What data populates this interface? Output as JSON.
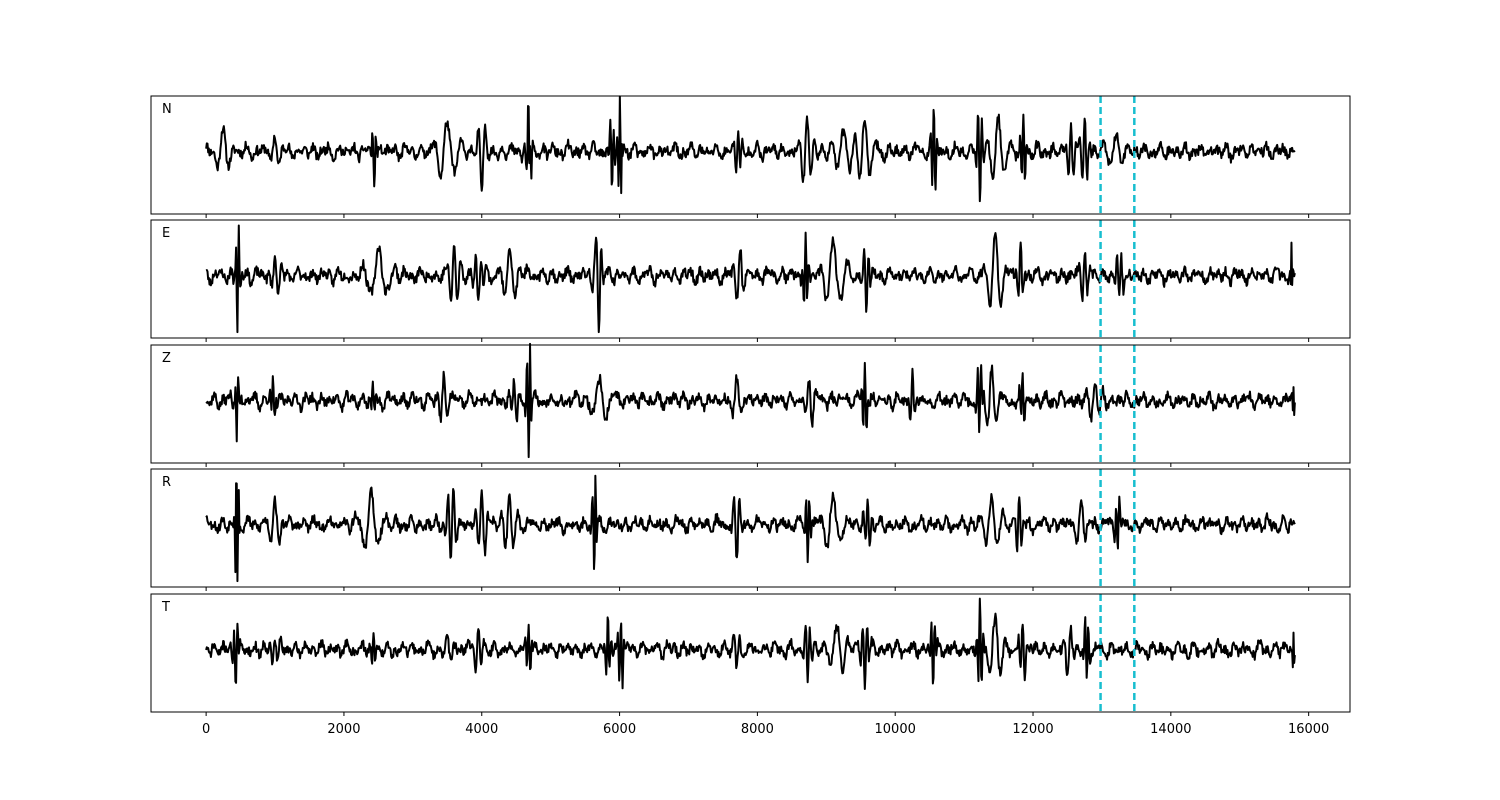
{
  "chart_data": {
    "type": "line",
    "xlabel": "",
    "ylabel": "",
    "xlim": [
      -800,
      16600
    ],
    "xticks": [
      0,
      2000,
      4000,
      6000,
      8000,
      10000,
      12000,
      14000,
      16000
    ],
    "xtick_labels": [
      "0",
      "2000",
      "4000",
      "6000",
      "8000",
      "10000",
      "12000",
      "14000",
      "16000"
    ],
    "x_range": [
      0,
      15800
    ],
    "markers": [
      {
        "x": 12980,
        "color": "#17becf",
        "style": "dashed"
      },
      {
        "x": 13470,
        "color": "#17becf",
        "style": "dashed"
      }
    ],
    "line_color": "#000000",
    "grid": false,
    "panels": [
      {
        "label": "N",
        "seed": 11,
        "bursts": [
          {
            "x": 250,
            "w": 220,
            "a": 0.35
          },
          {
            "x": 1000,
            "w": 150,
            "a": 0.3
          },
          {
            "x": 2440,
            "w": 60,
            "a": -0.55
          },
          {
            "x": 3500,
            "w": 250,
            "a": 0.45
          },
          {
            "x": 4000,
            "w": 120,
            "a": -0.55
          },
          {
            "x": 4680,
            "w": 80,
            "a": 0.6
          },
          {
            "x": 4690,
            "w": 40,
            "a": -0.55
          },
          {
            "x": 5890,
            "w": 60,
            "a": -0.7
          },
          {
            "x": 6010,
            "w": 60,
            "a": 0.6
          },
          {
            "x": 6020,
            "w": 40,
            "a": -0.85
          },
          {
            "x": 7720,
            "w": 80,
            "a": 0.45
          },
          {
            "x": 8720,
            "w": 140,
            "a": 0.55
          },
          {
            "x": 9250,
            "w": 220,
            "a": 0.5
          },
          {
            "x": 9560,
            "w": 200,
            "a": 0.5
          },
          {
            "x": 10560,
            "w": 60,
            "a": 0.85
          },
          {
            "x": 11230,
            "w": 70,
            "a": -0.9
          },
          {
            "x": 11500,
            "w": 200,
            "a": 0.55
          },
          {
            "x": 11860,
            "w": 60,
            "a": 0.65
          },
          {
            "x": 12550,
            "w": 90,
            "a": 0.5
          },
          {
            "x": 12750,
            "w": 90,
            "a": 0.6
          },
          {
            "x": 13200,
            "w": 200,
            "a": 0.3
          }
        ]
      },
      {
        "label": "E",
        "seed": 23,
        "bursts": [
          {
            "x": 450,
            "w": 60,
            "a": -0.9
          },
          {
            "x": 440,
            "w": 40,
            "a": 0.55
          },
          {
            "x": 1000,
            "w": 120,
            "a": 0.35
          },
          {
            "x": 2500,
            "w": 300,
            "a": 0.4
          },
          {
            "x": 3600,
            "w": 120,
            "a": 0.55
          },
          {
            "x": 3950,
            "w": 100,
            "a": -0.5
          },
          {
            "x": 4400,
            "w": 200,
            "a": 0.45
          },
          {
            "x": 5650,
            "w": 120,
            "a": 0.55
          },
          {
            "x": 5700,
            "w": 80,
            "a": -0.55
          },
          {
            "x": 7750,
            "w": 120,
            "a": 0.45
          },
          {
            "x": 8700,
            "w": 60,
            "a": 0.75
          },
          {
            "x": 9100,
            "w": 250,
            "a": 0.55
          },
          {
            "x": 9580,
            "w": 80,
            "a": -0.65
          },
          {
            "x": 11450,
            "w": 200,
            "a": 0.65
          },
          {
            "x": 11820,
            "w": 80,
            "a": 0.5
          },
          {
            "x": 12750,
            "w": 100,
            "a": 0.45
          },
          {
            "x": 13250,
            "w": 80,
            "a": -0.5
          },
          {
            "x": 15750,
            "w": 30,
            "a": 0.45
          }
        ]
      },
      {
        "label": "Z",
        "seed": 37,
        "bursts": [
          {
            "x": 440,
            "w": 60,
            "a": -0.5
          },
          {
            "x": 430,
            "w": 40,
            "a": 0.3
          },
          {
            "x": 970,
            "w": 60,
            "a": 0.35
          },
          {
            "x": 2420,
            "w": 60,
            "a": 0.3
          },
          {
            "x": 3450,
            "w": 120,
            "a": 0.4
          },
          {
            "x": 4470,
            "w": 100,
            "a": 0.4
          },
          {
            "x": 4680,
            "w": 60,
            "a": -0.9
          },
          {
            "x": 4700,
            "w": 40,
            "a": 0.5
          },
          {
            "x": 5700,
            "w": 250,
            "a": 0.4
          },
          {
            "x": 7700,
            "w": 150,
            "a": 0.4
          },
          {
            "x": 8750,
            "w": 120,
            "a": 0.45
          },
          {
            "x": 9560,
            "w": 60,
            "a": 0.65
          },
          {
            "x": 10250,
            "w": 80,
            "a": 0.45
          },
          {
            "x": 11220,
            "w": 60,
            "a": -0.65
          },
          {
            "x": 11400,
            "w": 160,
            "a": 0.65
          },
          {
            "x": 11850,
            "w": 60,
            "a": 0.45
          },
          {
            "x": 12900,
            "w": 150,
            "a": 0.3
          },
          {
            "x": 15780,
            "w": 30,
            "a": 0.25
          }
        ]
      },
      {
        "label": "R",
        "seed": 53,
        "bursts": [
          {
            "x": 440,
            "w": 40,
            "a": 0.85
          },
          {
            "x": 455,
            "w": 40,
            "a": -0.6
          },
          {
            "x": 1000,
            "w": 150,
            "a": 0.45
          },
          {
            "x": 2400,
            "w": 250,
            "a": 0.5
          },
          {
            "x": 3550,
            "w": 100,
            "a": -0.75
          },
          {
            "x": 4000,
            "w": 120,
            "a": 0.65
          },
          {
            "x": 4400,
            "w": 150,
            "a": 0.5
          },
          {
            "x": 5630,
            "w": 60,
            "a": -0.65
          },
          {
            "x": 5650,
            "w": 40,
            "a": 0.55
          },
          {
            "x": 7700,
            "w": 100,
            "a": -0.6
          },
          {
            "x": 8730,
            "w": 60,
            "a": -0.65
          },
          {
            "x": 9100,
            "w": 250,
            "a": 0.55
          },
          {
            "x": 9600,
            "w": 80,
            "a": 0.5
          },
          {
            "x": 11400,
            "w": 200,
            "a": 0.6
          },
          {
            "x": 11800,
            "w": 80,
            "a": 0.55
          },
          {
            "x": 12700,
            "w": 150,
            "a": 0.45
          },
          {
            "x": 13230,
            "w": 60,
            "a": -0.55
          }
        ]
      },
      {
        "label": "T",
        "seed": 71,
        "bursts": [
          {
            "x": 430,
            "w": 60,
            "a": -0.55
          },
          {
            "x": 1000,
            "w": 100,
            "a": 0.3
          },
          {
            "x": 2430,
            "w": 60,
            "a": 0.35
          },
          {
            "x": 3500,
            "w": 150,
            "a": 0.3
          },
          {
            "x": 3950,
            "w": 100,
            "a": 0.4
          },
          {
            "x": 4680,
            "w": 60,
            "a": 0.5
          },
          {
            "x": 5830,
            "w": 60,
            "a": 0.6
          },
          {
            "x": 6020,
            "w": 60,
            "a": 0.7
          },
          {
            "x": 7700,
            "w": 100,
            "a": -0.3
          },
          {
            "x": 8730,
            "w": 80,
            "a": -0.6
          },
          {
            "x": 9150,
            "w": 220,
            "a": 0.5
          },
          {
            "x": 9560,
            "w": 80,
            "a": -0.65
          },
          {
            "x": 10550,
            "w": 60,
            "a": -0.7
          },
          {
            "x": 11230,
            "w": 60,
            "a": 0.85
          },
          {
            "x": 11450,
            "w": 200,
            "a": 0.5
          },
          {
            "x": 11850,
            "w": 80,
            "a": 0.5
          },
          {
            "x": 12500,
            "w": 120,
            "a": -0.4
          },
          {
            "x": 12780,
            "w": 60,
            "a": -0.65
          },
          {
            "x": 15780,
            "w": 30,
            "a": 0.35
          }
        ]
      }
    ]
  }
}
